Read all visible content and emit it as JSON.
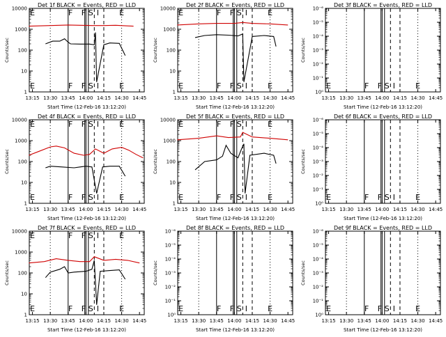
{
  "chart_data": [
    {
      "type": "line",
      "title": "Det 1f BLACK = Events, RED = LLD",
      "xlabel": "Start Time (12-Feb-16 13:12:20)",
      "ylabel": "Counts/sec",
      "x_ticks": [
        "13:15",
        "13:30",
        "13:45",
        "14:00",
        "14:15",
        "14:30",
        "14:45"
      ],
      "y_scale": "log",
      "y_ticks": [
        "1",
        "10",
        "100",
        "1000",
        "10000"
      ],
      "ylim": [
        1,
        10000
      ],
      "markers": [
        "E",
        "F",
        "F",
        "S",
        "I",
        "E"
      ],
      "series": [
        {
          "color": "#d00000",
          "points": [
            [
              "13:12",
              1400
            ],
            [
              "13:30",
              1500
            ],
            [
              "13:45",
              1600
            ],
            [
              "13:55",
              1550
            ],
            [
              "14:05",
              1500
            ],
            [
              "14:15",
              1500
            ],
            [
              "14:25",
              1550
            ],
            [
              "14:35",
              1450
            ],
            [
              "14:40",
              1400
            ]
          ]
        },
        {
          "color": "#000000",
          "points": [
            [
              "13:26",
              200
            ],
            [
              "13:32",
              270
            ],
            [
              "13:38",
              270
            ],
            [
              "13:42",
              350
            ],
            [
              "13:45",
              240
            ],
            [
              "13:47",
              200
            ],
            [
              "13:55",
              195
            ],
            [
              "14:03",
              195
            ],
            [
              "14:07",
              180
            ],
            [
              "14:08",
              700
            ],
            [
              "14:09",
              3
            ],
            [
              "14:15",
              180
            ],
            [
              "14:20",
              220
            ],
            [
              "14:28",
              210
            ],
            [
              "14:33",
              55
            ]
          ]
        }
      ]
    },
    {
      "type": "line",
      "title": "Det 2f BLACK = Events, RED = LLD",
      "xlabel": "Start Time (12-Feb-16 13:12:20)",
      "ylabel": "Counts/sec",
      "x_ticks": [
        "13:15",
        "13:30",
        "13:45",
        "14:00",
        "14:15",
        "14:30",
        "14:45"
      ],
      "y_scale": "log",
      "y_ticks": [
        "1",
        "10",
        "100",
        "1000",
        "10000"
      ],
      "ylim": [
        1,
        10000
      ],
      "markers": [
        "E",
        "F",
        "F",
        "S",
        "I",
        "E"
      ],
      "series": [
        {
          "color": "#d00000",
          "points": [
            [
              "13:12",
              1600
            ],
            [
              "13:30",
              1800
            ],
            [
              "13:45",
              1900
            ],
            [
              "14:00",
              1900
            ],
            [
              "14:07",
              2100
            ],
            [
              "14:15",
              1900
            ],
            [
              "14:30",
              1800
            ],
            [
              "14:45",
              1600
            ]
          ]
        },
        {
          "color": "#000000",
          "points": [
            [
              "13:27",
              400
            ],
            [
              "13:35",
              500
            ],
            [
              "13:45",
              550
            ],
            [
              "13:55",
              520
            ],
            [
              "14:03",
              480
            ],
            [
              "14:07",
              600
            ],
            [
              "14:08",
              3
            ],
            [
              "14:15",
              450
            ],
            [
              "14:25",
              500
            ],
            [
              "14:33",
              450
            ],
            [
              "14:35",
              150
            ]
          ]
        }
      ]
    },
    {
      "type": "line",
      "title": "Det 3f BLACK = Events, RED = LLD",
      "xlabel": "Start Time (12-Feb-16 13:12:20)",
      "ylabel": "Counts/sec",
      "x_ticks": [
        "13:15",
        "13:30",
        "13:45",
        "14:00",
        "14:15",
        "14:30",
        "14:45"
      ],
      "y_scale": "log",
      "y_ticks": [
        "10⁰",
        "10⁻¹",
        "10⁻²",
        "10⁻³",
        "10⁻⁴",
        "10⁻⁵",
        "10⁻⁶"
      ],
      "markers": [
        "E",
        "F",
        "F",
        "S",
        "I",
        "E"
      ],
      "series": []
    },
    {
      "type": "line",
      "title": "Det 4f BLACK = Events, RED = LLD",
      "xlabel": "Start Time (12-Feb-16 13:12:20)",
      "ylabel": "Counts/sec",
      "x_ticks": [
        "13:15",
        "13:30",
        "13:45",
        "14:00",
        "14:15",
        "14:30",
        "14:45"
      ],
      "y_scale": "log",
      "y_ticks": [
        "1",
        "10",
        "100",
        "1000",
        "10000"
      ],
      "ylim": [
        1,
        10000
      ],
      "markers": [
        "E",
        "F",
        "F",
        "S",
        "I",
        "E"
      ],
      "series": [
        {
          "color": "#d00000",
          "points": [
            [
              "13:12",
              200
            ],
            [
              "13:20",
              300
            ],
            [
              "13:30",
              500
            ],
            [
              "13:35",
              550
            ],
            [
              "13:42",
              450
            ],
            [
              "13:50",
              250
            ],
            [
              "13:58",
              200
            ],
            [
              "14:03",
              220
            ],
            [
              "14:08",
              400
            ],
            [
              "14:15",
              250
            ],
            [
              "14:22",
              400
            ],
            [
              "14:30",
              480
            ],
            [
              "14:36",
              350
            ],
            [
              "14:42",
              220
            ],
            [
              "14:48",
              150
            ]
          ]
        },
        {
          "color": "#000000",
          "points": [
            [
              "13:26",
              50
            ],
            [
              "13:30",
              60
            ],
            [
              "13:40",
              55
            ],
            [
              "13:50",
              50
            ],
            [
              "13:55",
              55
            ],
            [
              "14:00",
              60
            ],
            [
              "14:05",
              55
            ],
            [
              "14:09",
              3
            ],
            [
              "14:14",
              55
            ],
            [
              "14:20",
              60
            ],
            [
              "14:28",
              60
            ],
            [
              "14:33",
              20
            ]
          ]
        }
      ]
    },
    {
      "type": "line",
      "title": "Det 5f BLACK = Events, RED = LLD",
      "xlabel": "Start Time (12-Feb-16 13:12:20)",
      "ylabel": "Counts/sec",
      "x_ticks": [
        "13:15",
        "13:30",
        "13:45",
        "14:00",
        "14:15",
        "14:30",
        "14:45"
      ],
      "y_scale": "log",
      "y_ticks": [
        "1",
        "10",
        "100",
        "1000",
        "10000"
      ],
      "ylim": [
        1,
        10000
      ],
      "markers": [
        "E",
        "F",
        "F",
        "S",
        "I",
        "E"
      ],
      "series": [
        {
          "color": "#d00000",
          "points": [
            [
              "13:12",
              1100
            ],
            [
              "13:30",
              1300
            ],
            [
              "13:45",
              1700
            ],
            [
              "13:55",
              1400
            ],
            [
              "14:05",
              1500
            ],
            [
              "14:07",
              2500
            ],
            [
              "14:15",
              1500
            ],
            [
              "14:30",
              1300
            ],
            [
              "14:45",
              1100
            ]
          ]
        },
        {
          "color": "#000000",
          "points": [
            [
              "13:27",
              40
            ],
            [
              "13:35",
              100
            ],
            [
              "13:45",
              120
            ],
            [
              "13:50",
              180
            ],
            [
              "13:53",
              600
            ],
            [
              "13:57",
              250
            ],
            [
              "14:03",
              150
            ],
            [
              "14:06",
              400
            ],
            [
              "14:08",
              700
            ],
            [
              "14:09",
              3
            ],
            [
              "14:13",
              200
            ],
            [
              "14:25",
              250
            ],
            [
              "14:33",
              200
            ],
            [
              "14:35",
              80
            ]
          ]
        }
      ]
    },
    {
      "type": "line",
      "title": "Det 6f BLACK = Events, RED = LLD",
      "xlabel": "Start Time (12-Feb-16 13:12:20)",
      "ylabel": "Counts/sec",
      "x_ticks": [
        "13:15",
        "13:30",
        "13:45",
        "14:00",
        "14:15",
        "14:30",
        "14:45"
      ],
      "y_scale": "log",
      "y_ticks": [
        "10⁰",
        "10⁻¹",
        "10⁻²",
        "10⁻³",
        "10⁻⁴",
        "10⁻⁵",
        "10⁻⁶"
      ],
      "markers": [
        "E",
        "F",
        "F",
        "S",
        "I",
        "E"
      ],
      "series": []
    },
    {
      "type": "line",
      "title": "Det 7f BLACK = Events, RED = LLD",
      "xlabel": "Start Time (12-Feb-16 13:12:20)",
      "ylabel": "Counts/sec",
      "x_ticks": [
        "13:15",
        "13:30",
        "13:45",
        "14:00",
        "14:15",
        "14:30",
        "14:45"
      ],
      "y_scale": "log",
      "y_ticks": [
        "1",
        "10",
        "100",
        "1000",
        "10000"
      ],
      "ylim": [
        1,
        10000
      ],
      "markers": [
        "E",
        "F",
        "F",
        "S",
        "I",
        "E"
      ],
      "series": [
        {
          "color": "#d00000",
          "points": [
            [
              "13:12",
              300
            ],
            [
              "13:25",
              350
            ],
            [
              "13:35",
              480
            ],
            [
              "13:45",
              400
            ],
            [
              "13:55",
              350
            ],
            [
              "14:03",
              350
            ],
            [
              "14:07",
              600
            ],
            [
              "14:15",
              400
            ],
            [
              "14:25",
              450
            ],
            [
              "14:35",
              400
            ],
            [
              "14:45",
              300
            ]
          ]
        },
        {
          "color": "#000000",
          "points": [
            [
              "13:26",
              60
            ],
            [
              "13:30",
              110
            ],
            [
              "13:38",
              150
            ],
            [
              "13:42",
              200
            ],
            [
              "13:45",
              100
            ],
            [
              "13:50",
              110
            ],
            [
              "14:00",
              120
            ],
            [
              "14:05",
              150
            ],
            [
              "14:07",
              400
            ],
            [
              "14:09",
              3
            ],
            [
              "14:12",
              120
            ],
            [
              "14:20",
              130
            ],
            [
              "14:28",
              140
            ],
            [
              "14:33",
              50
            ]
          ]
        }
      ]
    },
    {
      "type": "line",
      "title": "Det 8f BLACK = Events, RED = LLD",
      "xlabel": "Start Time (12-Feb-16 13:12:20)",
      "ylabel": "Counts/sec",
      "x_ticks": [
        "13:15",
        "13:30",
        "13:45",
        "14:00",
        "14:15",
        "14:30",
        "14:45"
      ],
      "y_scale": "log",
      "y_ticks": [
        "10⁰",
        "10⁻¹",
        "10⁻²",
        "10⁻³",
        "10⁻⁴",
        "10⁻⁵",
        "10⁻⁶"
      ],
      "markers": [
        "E",
        "F",
        "F",
        "S",
        "I",
        "E"
      ],
      "series": []
    },
    {
      "type": "line",
      "title": "Det 9f BLACK = Events, RED = LLD",
      "xlabel": "Start Time (12-Feb-16 13:12:20)",
      "ylabel": "Counts/sec",
      "x_ticks": [
        "13:15",
        "13:30",
        "13:45",
        "14:00",
        "14:15",
        "14:30",
        "14:45"
      ],
      "y_scale": "log",
      "y_ticks": [
        "10⁰",
        "10⁻¹",
        "10⁻²",
        "10⁻³",
        "10⁻⁴",
        "10⁻⁵",
        "10⁻⁶"
      ],
      "markers": [
        "E",
        "F",
        "F",
        "S",
        "I",
        "E"
      ],
      "series": []
    }
  ],
  "shared": {
    "solid_lines": [
      "13:45",
      "13:59",
      "14:00",
      "14:02"
    ],
    "dashed_lines": [
      "14:07",
      "14:15"
    ],
    "dotted_lines": [
      "13:30",
      "14:30"
    ],
    "marker_times": [
      "13:15",
      "13:47",
      "13:58",
      "14:04",
      "14:10",
      "14:30"
    ],
    "colors": {
      "lld": "#d00000",
      "events": "#000000",
      "axes": "#000000",
      "background": "#ffffff"
    }
  }
}
